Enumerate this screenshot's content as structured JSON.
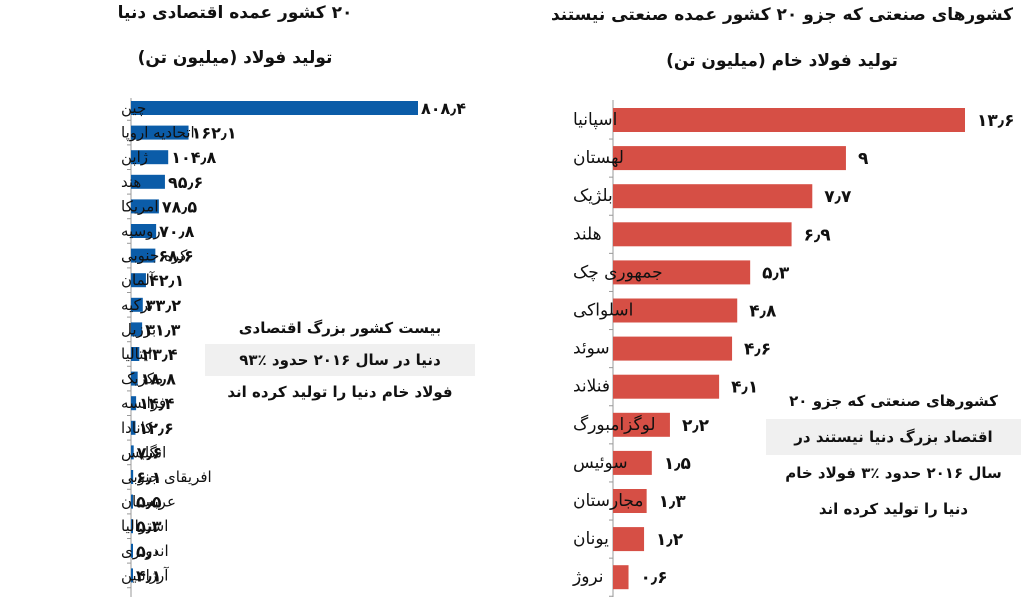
{
  "chart_data": [
    {
      "type": "bar",
      "title": "۲۰ کشور عمده اقتصادی دنیا",
      "subtitle": "تولید فولاد (میلیون تن)",
      "color": "#0b5ca8",
      "categories": [
        "چین",
        "اتحادیه اروپا",
        "ژاپن",
        "هند",
        "امریکا",
        "روسیه",
        "کره جنوبی",
        "آلمان",
        "ترکیه",
        "برزیل",
        "ایتالیا",
        "مکزیک",
        "فرانسه",
        "کانادا",
        "انگلیس",
        "افریقای جنوبی",
        "عربستان",
        "استرالیا",
        "اندونزی",
        "آرژانتین"
      ],
      "values": [
        808.4,
        162.1,
        104.8,
        95.6,
        78.5,
        70.8,
        68.6,
        42.1,
        33.2,
        31.3,
        23.4,
        18.8,
        14.4,
        12.6,
        7.6,
        6.1,
        5.5,
        5.3,
        5.0,
        4.1
      ],
      "value_labels": [
        "۸۰۸٫۴",
        "۱۶۲٫۱",
        "۱۰۴٫۸",
        "۹۵٫۶",
        "۷۸٫۵",
        "۷۰٫۸",
        "۶۸٫۶",
        "۴۲٫۱",
        "۳۳٫۲",
        "۳۱٫۳",
        "۲۳٫۴",
        "۱۸٫۸",
        "۱۴٫۴",
        "۱۲٫۶",
        "۷٫۶",
        "۶٫۱",
        "۵٫۵",
        "۵٫۳",
        "۵٫۰",
        "۴٫۱"
      ],
      "annotation": [
        "بیست کشور بزرگ اقتصادی",
        "دنیا در سال ۲۰۱۶ حدود ٪۹۳",
        "فولاد خام دنیا را تولید کرده اند"
      ]
    },
    {
      "type": "bar",
      "title": "کشورهای صنعتی که جزو ۲۰ کشور عمده صنعتی نیستند",
      "subtitle": "تولید فولاد خام (میلیون تن)",
      "color": "#d64f45",
      "categories": [
        "اسپانیا",
        "لهستان",
        "بلژیک",
        "هلند",
        "جمهوری چک",
        "اسلواکی",
        "سوئد",
        "فنلاند",
        "لوگزامبورگ",
        "سوئیس",
        "مجارستان",
        "یونان",
        "نروژ"
      ],
      "values": [
        13.6,
        9,
        7.7,
        6.9,
        5.3,
        4.8,
        4.6,
        4.1,
        2.2,
        1.5,
        1.3,
        1.2,
        0.6
      ],
      "value_labels": [
        "۱۳٫۶",
        "۹",
        "۷٫۷",
        "۶٫۹",
        "۵٫۳",
        "۴٫۸",
        "۴٫۶",
        "۴٫۱",
        "۲٫۲",
        "۱٫۵",
        "۱٫۳",
        "۱٫۲",
        "۰٫۶"
      ],
      "annotation": [
        "کشورهای صنعتی که جزو ۲۰",
        "اقتصاد بزرگ دنیا نیستند در",
        "سال ۲۰۱۶ حدود ٪۳ فولاد خام",
        "دنیا را تولید کرده اند"
      ]
    }
  ]
}
